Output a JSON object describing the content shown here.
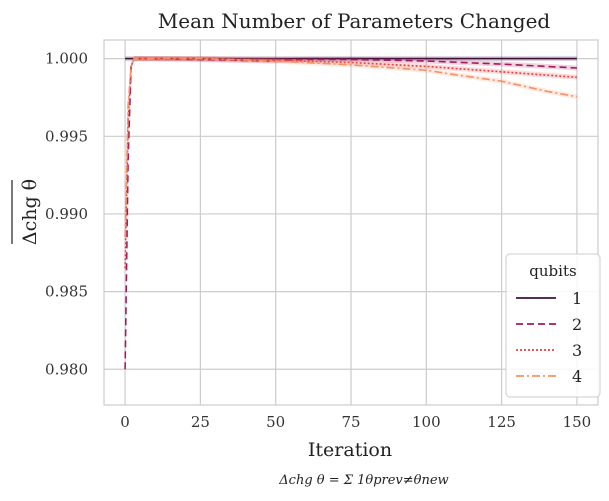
{
  "chart_data": {
    "type": "line",
    "title": "Mean Number of Parameters Changed",
    "xlabel": "Iteration",
    "ylabel": "Δchg θ",
    "caption": "Δchg θ = Σ 1θprev≠θnew",
    "xlim": [
      -7,
      157
    ],
    "ylim": [
      0.9777,
      1.0012
    ],
    "xticks": [
      0,
      25,
      50,
      75,
      100,
      125,
      150
    ],
    "yticks": [
      0.98,
      0.985,
      0.99,
      0.995,
      1.0
    ],
    "xtick_labels": [
      "0",
      "25",
      "50",
      "75",
      "100",
      "125",
      "150"
    ],
    "ytick_labels": [
      "0.980",
      "0.985",
      "0.990",
      "0.995",
      "1.000"
    ],
    "grid": true,
    "legend": {
      "title": "qubits",
      "placement": "bottom-right"
    },
    "series": [
      {
        "name": "1",
        "color": "#3d0f3d",
        "dash": "solid",
        "x": [
          0,
          1,
          2,
          3,
          5,
          25,
          50,
          75,
          100,
          125,
          150
        ],
        "y": [
          1.0,
          1.0,
          1.0,
          1.0,
          1.0,
          1.0,
          1.0,
          1.0,
          1.0,
          1.0,
          1.0
        ]
      },
      {
        "name": "2",
        "color": "#a3195b",
        "dash": "7,4",
        "x": [
          0,
          1,
          2,
          3,
          5,
          22,
          48,
          60,
          75,
          100,
          125,
          150
        ],
        "y": [
          0.98,
          0.9935,
          0.9995,
          1.0,
          1.0,
          0.99995,
          0.99985,
          0.99995,
          0.99995,
          0.99985,
          0.99965,
          0.9994
        ]
      },
      {
        "name": "3",
        "color": "#e83f3f",
        "dash": "2,2",
        "x": [
          0,
          1,
          2,
          3,
          5,
          25,
          50,
          75,
          100,
          125,
          150
        ],
        "y": [
          0.9865,
          0.996,
          0.9995,
          1.0,
          1.0,
          1.0,
          0.9999,
          0.99975,
          0.9995,
          0.99915,
          0.9988
        ]
      },
      {
        "name": "4",
        "color": "#f79164",
        "dash": "8,3,2,3",
        "x": [
          0,
          1,
          2,
          3,
          5,
          25,
          50,
          75,
          100,
          110,
          125,
          140,
          150
        ],
        "y": [
          0.9885,
          0.997,
          0.9995,
          1.0,
          1.0,
          1.0,
          0.99985,
          0.9996,
          0.99925,
          0.99895,
          0.99855,
          0.9979,
          0.99755
        ]
      }
    ]
  }
}
